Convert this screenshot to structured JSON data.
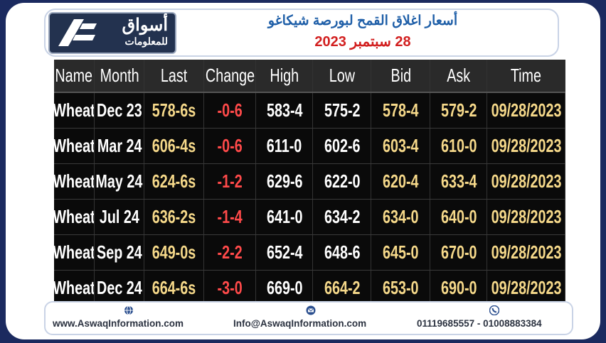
{
  "header": {
    "logo_name": "أسواق",
    "logo_tagline": "للمعلومات",
    "title": "أسعار اغلاق القمح لبورصة شيكاغو",
    "date": "28 سبتمبر 2023"
  },
  "table": {
    "columns": [
      "Name",
      "Month",
      "Last",
      "Change",
      "High",
      "Low",
      "Bid",
      "Ask",
      "Time"
    ],
    "rows": [
      [
        "Wheat",
        "Dec 23",
        "578-6s",
        "-0-6",
        "583-4",
        "575-2",
        "578-4",
        "579-2",
        "09/28/2023"
      ],
      [
        "Wheat",
        "Mar 24",
        "606-4s",
        "-0-6",
        "611-0",
        "602-6",
        "603-4",
        "610-0",
        "09/28/2023"
      ],
      [
        "Wheat",
        "May 24",
        "624-6s",
        "-1-2",
        "629-6",
        "622-0",
        "620-4",
        "633-4",
        "09/28/2023"
      ],
      [
        "Wheat",
        "Jul 24",
        "636-2s",
        "-1-4",
        "641-0",
        "634-2",
        "634-0",
        "640-0",
        "09/28/2023"
      ],
      [
        "Wheat",
        "Sep 24",
        "649-0s",
        "-2-2",
        "652-4",
        "648-6",
        "645-0",
        "670-0",
        "09/28/2023"
      ],
      [
        "Wheat",
        "Dec 24",
        "664-6s",
        "-3-0",
        "669-0",
        "664-2",
        "653-0",
        "690-0",
        "09/28/2023"
      ]
    ]
  },
  "footer": {
    "website": "www.AswaqInformation.com",
    "email": "Info@AswaqInformation.com",
    "phones": "01119685557 - 01008883384"
  }
}
